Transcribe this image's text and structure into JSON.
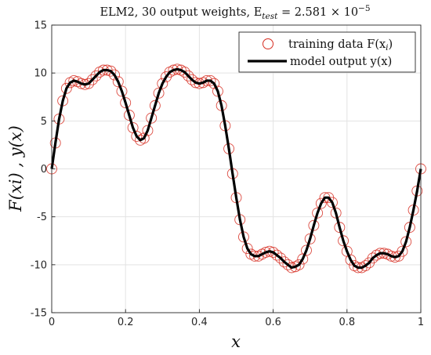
{
  "chart_data": {
    "type": "line",
    "title": "ELM2, 30 output weights, E",
    "title_sub": "test",
    "title_value": " = 2.581 × 10",
    "title_exp": "−5",
    "xlabel": "x",
    "ylabel": "F(xi) , y(x)",
    "xlim": [
      0,
      1
    ],
    "ylim": [
      -15,
      15
    ],
    "xticks": [
      0,
      0.2,
      0.4,
      0.6,
      0.8,
      1
    ],
    "xtick_labels": [
      "0",
      "0.2",
      "0.4",
      "0.6",
      "0.8",
      "1"
    ],
    "yticks": [
      15,
      10,
      5,
      0,
      -5,
      -10,
      -15
    ],
    "ytick_labels": [
      "15",
      "10",
      "5",
      "0",
      "-5",
      "-10",
      "-15"
    ],
    "grid": true,
    "legend_position": "top-right",
    "legend": {
      "training_label": "training data F(x",
      "training_sub": "i",
      "training_close": ")",
      "model_label": "model output y(x)"
    },
    "colors": {
      "marker": "#d62c20",
      "line": "#000000",
      "grid": "#e3e3e3",
      "axes": "#262626"
    },
    "series": [
      {
        "name": "training data F(xi)",
        "style": "circle-markers",
        "x": [
          0,
          0.01,
          0.02,
          0.03,
          0.04,
          0.05,
          0.06,
          0.07,
          0.08,
          0.09,
          0.1,
          0.11,
          0.12,
          0.13,
          0.14,
          0.15,
          0.16,
          0.17,
          0.18,
          0.19,
          0.2,
          0.21,
          0.22,
          0.23,
          0.24,
          0.25,
          0.26,
          0.27,
          0.28,
          0.29,
          0.3,
          0.31,
          0.32,
          0.33,
          0.34,
          0.35,
          0.36,
          0.37,
          0.38,
          0.39,
          0.4,
          0.41,
          0.42,
          0.43,
          0.44,
          0.45,
          0.46,
          0.47,
          0.48,
          0.49,
          0.5,
          0.51,
          0.52,
          0.53,
          0.54,
          0.55,
          0.56,
          0.57,
          0.58,
          0.59,
          0.6,
          0.61,
          0.62,
          0.63,
          0.64,
          0.65,
          0.66,
          0.67,
          0.68,
          0.69,
          0.7,
          0.71,
          0.72,
          0.73,
          0.74,
          0.75,
          0.76,
          0.77,
          0.78,
          0.79,
          0.8,
          0.81,
          0.82,
          0.83,
          0.84,
          0.85,
          0.86,
          0.87,
          0.88,
          0.89,
          0.9,
          0.91,
          0.92,
          0.93,
          0.94,
          0.95,
          0.96,
          0.97,
          0.98,
          0.99,
          1
        ],
        "y": [
          0,
          2.7,
          5.2,
          7.1,
          8.4,
          9.0,
          9.2,
          9.1,
          8.9,
          8.8,
          8.9,
          9.3,
          9.7,
          10.1,
          10.3,
          10.3,
          10.2,
          9.8,
          9.1,
          8.1,
          6.9,
          5.6,
          4.3,
          3.4,
          3.0,
          3.2,
          4.0,
          5.3,
          6.6,
          7.9,
          8.9,
          9.6,
          10.1,
          10.3,
          10.4,
          10.3,
          10.1,
          9.7,
          9.3,
          9.0,
          8.9,
          9.0,
          9.2,
          9.2,
          8.9,
          8.1,
          6.6,
          4.5,
          2.1,
          -0.5,
          -3.0,
          -5.3,
          -7.1,
          -8.3,
          -8.9,
          -9.1,
          -9.1,
          -8.9,
          -8.7,
          -8.6,
          -8.7,
          -9.0,
          -9.3,
          -9.7,
          -10.0,
          -10.3,
          -10.2,
          -10.0,
          -9.4,
          -8.5,
          -7.3,
          -5.9,
          -4.6,
          -3.6,
          -3.0,
          -3.0,
          -3.5,
          -4.6,
          -6.1,
          -7.5,
          -8.6,
          -9.5,
          -10.1,
          -10.3,
          -10.3,
          -10.1,
          -9.8,
          -9.3,
          -9.0,
          -8.8,
          -8.8,
          -8.9,
          -9.1,
          -9.2,
          -9.1,
          -8.6,
          -7.6,
          -6.1,
          -4.3,
          -2.3,
          0
        ]
      },
      {
        "name": "model output y(x)",
        "style": "solid-line",
        "x": [
          0,
          0.01,
          0.02,
          0.03,
          0.04,
          0.05,
          0.06,
          0.07,
          0.08,
          0.09,
          0.1,
          0.11,
          0.12,
          0.13,
          0.14,
          0.15,
          0.16,
          0.17,
          0.18,
          0.19,
          0.2,
          0.21,
          0.22,
          0.23,
          0.24,
          0.25,
          0.26,
          0.27,
          0.28,
          0.29,
          0.3,
          0.31,
          0.32,
          0.33,
          0.34,
          0.35,
          0.36,
          0.37,
          0.38,
          0.39,
          0.4,
          0.41,
          0.42,
          0.43,
          0.44,
          0.45,
          0.46,
          0.47,
          0.48,
          0.49,
          0.5,
          0.51,
          0.52,
          0.53,
          0.54,
          0.55,
          0.56,
          0.57,
          0.58,
          0.59,
          0.6,
          0.61,
          0.62,
          0.63,
          0.64,
          0.65,
          0.66,
          0.67,
          0.68,
          0.69,
          0.7,
          0.71,
          0.72,
          0.73,
          0.74,
          0.75,
          0.76,
          0.77,
          0.78,
          0.79,
          0.8,
          0.81,
          0.82,
          0.83,
          0.84,
          0.85,
          0.86,
          0.87,
          0.88,
          0.89,
          0.9,
          0.91,
          0.92,
          0.93,
          0.94,
          0.95,
          0.96,
          0.97,
          0.98,
          0.99,
          1
        ],
        "y": [
          0,
          2.7,
          5.2,
          7.1,
          8.4,
          9.0,
          9.2,
          9.1,
          8.9,
          8.8,
          8.9,
          9.3,
          9.7,
          10.1,
          10.3,
          10.3,
          10.2,
          9.8,
          9.1,
          8.1,
          6.9,
          5.6,
          4.3,
          3.4,
          3.0,
          3.2,
          4.0,
          5.3,
          6.6,
          7.9,
          8.9,
          9.6,
          10.1,
          10.3,
          10.4,
          10.3,
          10.1,
          9.7,
          9.3,
          9.0,
          8.9,
          9.0,
          9.2,
          9.2,
          8.9,
          8.1,
          6.6,
          4.5,
          2.1,
          -0.5,
          -3.0,
          -5.3,
          -7.1,
          -8.3,
          -8.9,
          -9.1,
          -9.1,
          -8.9,
          -8.7,
          -8.6,
          -8.7,
          -9.0,
          -9.3,
          -9.7,
          -10.0,
          -10.3,
          -10.2,
          -10.0,
          -9.4,
          -8.5,
          -7.3,
          -5.9,
          -4.6,
          -3.6,
          -3.0,
          -3.0,
          -3.5,
          -4.6,
          -6.1,
          -7.5,
          -8.6,
          -9.5,
          -10.1,
          -10.3,
          -10.3,
          -10.1,
          -9.8,
          -9.3,
          -9.0,
          -8.8,
          -8.8,
          -8.9,
          -9.1,
          -9.2,
          -9.1,
          -8.6,
          -7.6,
          -6.1,
          -4.3,
          -2.3,
          0
        ]
      }
    ]
  }
}
